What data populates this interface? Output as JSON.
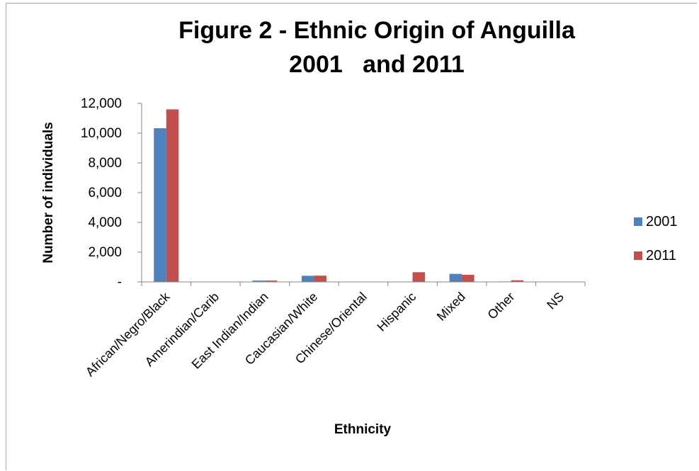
{
  "chart_data": {
    "type": "bar",
    "title_lines": [
      "Figure 2 - Ethnic Origin of Anguilla",
      "2001   and 2011"
    ],
    "xlabel": "Ethnicity",
    "ylabel": "Number of individuals",
    "ylim": [
      0,
      12000
    ],
    "yticks": [
      0,
      2000,
      4000,
      6000,
      8000,
      10000,
      12000
    ],
    "ytick_labels": [
      "-",
      "2,000",
      "4,000",
      "6,000",
      "8,000",
      "10,000",
      "12,000"
    ],
    "categories": [
      "African/Negro/Black",
      "Amerindian/Carib",
      "East Indian/Indian",
      "Caucasian/White",
      "Chinese/Oriental",
      "Hispanic",
      "Mixed",
      "Other",
      "NS"
    ],
    "series": [
      {
        "name": "2001",
        "color": "#4f81bd",
        "values": [
          10330,
          5,
          90,
          410,
          15,
          20,
          540,
          30,
          10
        ]
      },
      {
        "name": "2011",
        "color": "#c0504d",
        "values": [
          11600,
          10,
          90,
          420,
          20,
          650,
          480,
          110,
          15
        ]
      }
    ],
    "grid": false,
    "legend_position": "right"
  }
}
